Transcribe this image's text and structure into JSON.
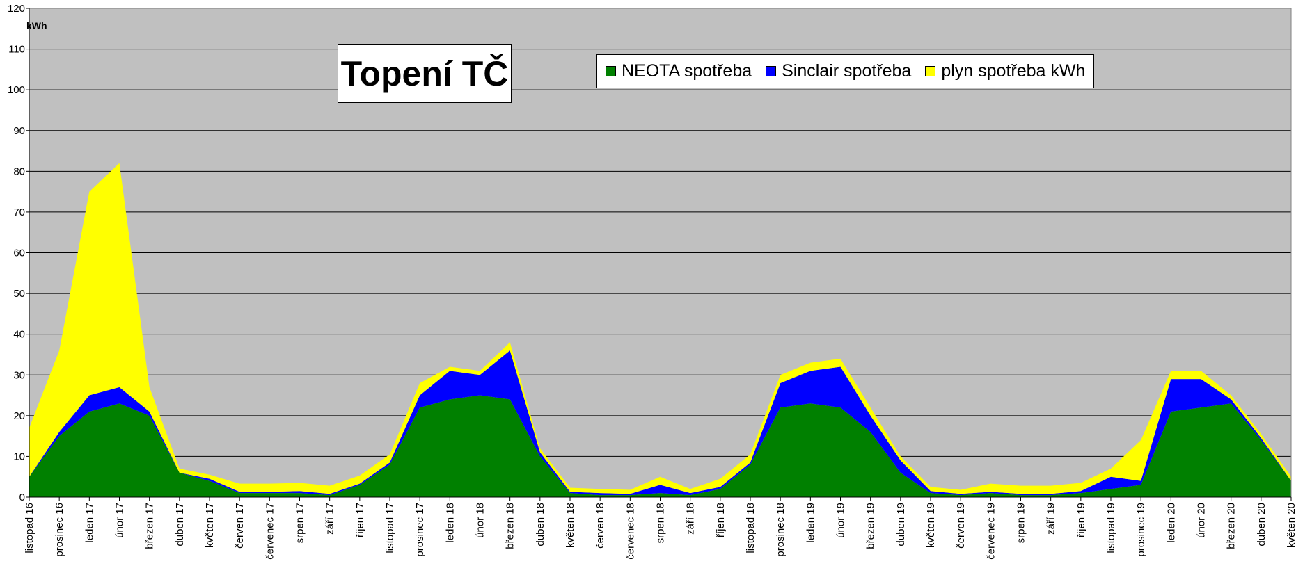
{
  "chart_data": {
    "type": "area",
    "stacked": true,
    "title": "Topení TČ",
    "ylabel": "kWh",
    "xlabel": "",
    "ylim": [
      0,
      120
    ],
    "yticks": [
      0,
      10,
      20,
      30,
      40,
      50,
      60,
      70,
      80,
      90,
      100,
      110,
      120
    ],
    "grid": true,
    "legend_position": "top-right",
    "plot_background": "#c0c0c0",
    "categories": [
      "listopad 16",
      "prosinec 16",
      "leden 17",
      "únor 17",
      "březen 17",
      "duben 17",
      "květen 17",
      "červen 17",
      "červenec 17",
      "srpen 17",
      "září 17",
      "říjen 17",
      "listopad 17",
      "prosinec 17",
      "leden 18",
      "únor 18",
      "březen 18",
      "duben 18",
      "květen 18",
      "červen 18",
      "červenec 18",
      "srpen 18",
      "září 18",
      "říjen 18",
      "listopad 18",
      "prosinec 18",
      "leden 19",
      "únor 19",
      "březen 19",
      "duben 19",
      "květen 19",
      "červen 19",
      "červenec 19",
      "srpen 19",
      "září 19",
      "říjen 19",
      "listopad 19",
      "prosinec 19",
      "leden 20",
      "únor 20",
      "březen 20",
      "duben 20",
      "květen 20"
    ],
    "series": [
      {
        "name": "NEOTA spotřeba",
        "color": "#008000",
        "values": [
          5,
          15,
          21,
          23,
          20,
          6,
          4,
          1,
          1,
          1,
          0.5,
          3,
          8,
          22,
          24,
          25,
          24,
          10,
          1,
          0.5,
          0.5,
          1,
          0.5,
          2,
          8,
          22,
          23,
          22,
          16,
          6,
          1,
          0.5,
          1,
          0.5,
          0.5,
          1,
          2,
          3,
          21,
          22,
          23,
          14,
          4
        ]
      },
      {
        "name": "Sinclair spotřeba",
        "color": "#0000ff",
        "values": [
          0,
          1,
          4,
          4,
          1,
          0,
          0.5,
          0.3,
          0.3,
          0.5,
          0.3,
          0.3,
          0.5,
          3,
          7,
          5,
          12,
          1,
          0.3,
          0.5,
          0.3,
          2,
          0.5,
          0.5,
          0.5,
          6,
          8,
          10,
          4,
          3,
          0.5,
          0.3,
          0.3,
          0.3,
          0.3,
          0.5,
          3,
          1,
          8,
          7,
          1,
          0.5,
          0
        ]
      },
      {
        "name": "plyn spotřeba kWh",
        "color": "#ffff00",
        "values": [
          12,
          20,
          50,
          55,
          6,
          1,
          1,
          2,
          2,
          2,
          2,
          2,
          2,
          3,
          1,
          1,
          2,
          1,
          1,
          1,
          1,
          2,
          1,
          2,
          2,
          2,
          2,
          2,
          2,
          1,
          1,
          1,
          2,
          2,
          2,
          2,
          2,
          10,
          2,
          2,
          1,
          1,
          1
        ]
      }
    ]
  }
}
